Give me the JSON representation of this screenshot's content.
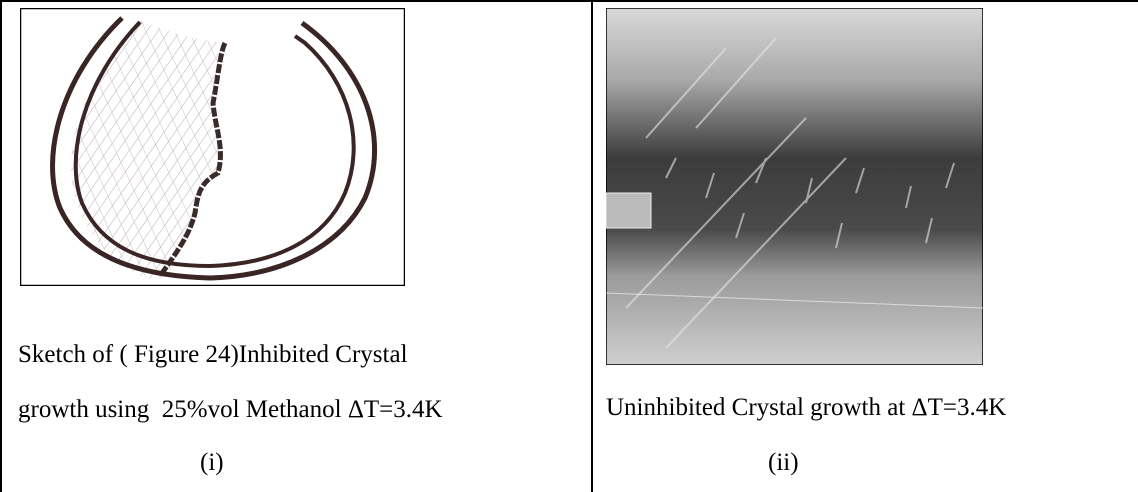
{
  "table": {
    "cells": [
      {
        "caption_lines": [
          "Sketch of ( Figure 24)Inhibited Crystal",
          "growth using  25%vol Methanol ΔT=3.4K"
        ],
        "label": "(i)"
      },
      {
        "caption_lines": [
          "Uninhibited Crystal growth at ΔT=3.4K"
        ],
        "label": "(ii)"
      }
    ]
  }
}
